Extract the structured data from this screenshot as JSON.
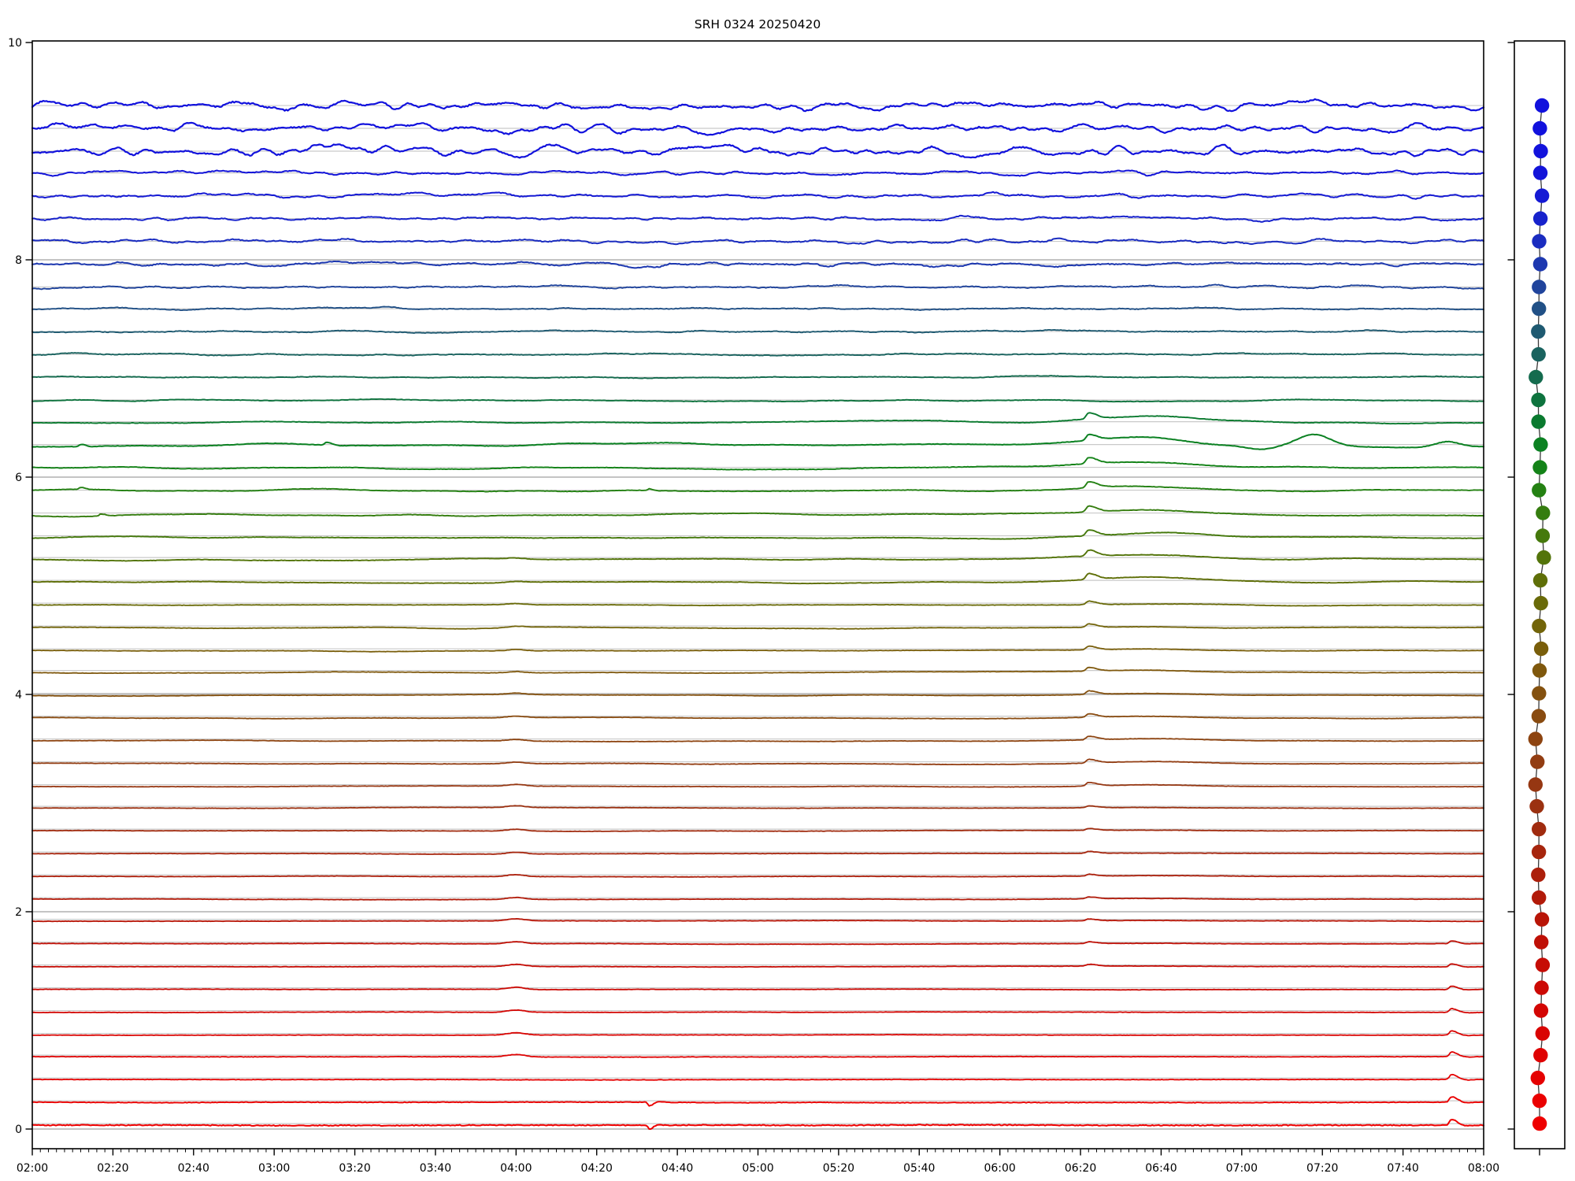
{
  "title": "SRH 0324 20250420",
  "station": "SRH 0324",
  "date": "20250420",
  "x_axis": {
    "tick_labels": [
      "02:00",
      "02:20",
      "02:40",
      "03:00",
      "03:20",
      "03:40",
      "04:00",
      "04:20",
      "04:40",
      "05:00",
      "05:20",
      "05:40",
      "06:00",
      "06:20",
      "06:40",
      "07:00",
      "07:20",
      "07:40",
      "08:00"
    ],
    "start_minutes": 120,
    "end_minutes": 480,
    "major_step_minutes": 20,
    "minor_step_minutes": 2
  },
  "y_axis": {
    "tick_labels": [
      "0",
      "2",
      "4",
      "6",
      "8",
      "10"
    ],
    "tick_values": [
      0,
      2,
      4,
      6,
      8,
      10
    ],
    "ylim": [
      -0.18,
      10.02
    ]
  },
  "colors": {
    "background": "#ffffff",
    "spine": "#000000",
    "trace_baseline": "#c9c9c9",
    "grid_major": "#b0b0b0",
    "marker_connector": "#3a3a3a"
  },
  "side_panel": {
    "marker_radius": 9.2,
    "connector_color": "#3a3a3a",
    "tick_values": [
      0,
      2,
      4,
      6,
      8,
      10
    ]
  },
  "chart_data": {
    "type": "line",
    "title": "SRH 0324 20250420",
    "xlabel": "",
    "ylabel": "",
    "x_range_minutes": [
      120,
      480
    ],
    "ylim": [
      -0.18,
      10.02
    ],
    "grid": "per-trace gray baselines plus darker gridlines at y=0,2,4,6,8",
    "legend_position": "none",
    "description": "Stacked drum-style waveform record section: 46 horizontal traces spaced 0.2082 units apart from y=9.42 (top) to y=0.05 (bottom), colored along a blue-teal-green-olive-brown-red gradient. Top blue traces are noisy/high amplitude, middle green-olive traces are smooth with slow undulations, bottom red traces are nearly flat. A narrow side strip on the right shows one colored dot per trace (same colors) connected by a thin dark line.",
    "n_traces": 46,
    "first_trace_baseline": 9.42,
    "trace_spacing": 0.2082,
    "traces": [
      {
        "y": 9.42,
        "color": "#1111dd",
        "amp": 0.055,
        "kc": 55,
        "fuzz": 0.006,
        "w": 2.2,
        "off": 0
      },
      {
        "y": 9.21,
        "color": "#1111dd",
        "amp": 0.058,
        "kc": 55,
        "fuzz": 0.006,
        "w": 2.2,
        "off": 0
      },
      {
        "y": 9.0,
        "color": "#1212dc",
        "amp": 0.062,
        "kc": 50,
        "fuzz": 0.006,
        "w": 2.2,
        "off": 0
      },
      {
        "y": 8.8,
        "color": "#1314d9",
        "amp": 0.028,
        "kc": 45,
        "fuzz": 0.004,
        "w": 2.0,
        "off": 0
      },
      {
        "y": 8.59,
        "color": "#151ad4",
        "amp": 0.032,
        "kc": 42,
        "fuzz": 0.004,
        "w": 2.0,
        "off": 0
      },
      {
        "y": 8.38,
        "color": "#1722cc",
        "amp": 0.028,
        "kc": 40,
        "fuzz": 0.004,
        "w": 2.0,
        "off": 0
      },
      {
        "y": 8.17,
        "color": "#1a2cc0",
        "amp": 0.026,
        "kc": 38,
        "fuzz": 0.004,
        "w": 2.0,
        "off": 0
      },
      {
        "y": 7.96,
        "color": "#1d38b0",
        "amp": 0.032,
        "kc": 36,
        "fuzz": 0.004,
        "w": 2.0,
        "off": 0
      },
      {
        "y": 7.75,
        "color": "#20449c",
        "amp": 0.02,
        "kc": 30,
        "fuzz": 0.0035,
        "w": 1.9,
        "off": 0
      },
      {
        "y": 7.55,
        "color": "#215086",
        "amp": 0.017,
        "kc": 26,
        "fuzz": 0.003,
        "w": 1.9,
        "off": 0
      },
      {
        "y": 7.34,
        "color": "#1f5a71",
        "amp": 0.015,
        "kc": 22,
        "fuzz": 0.003,
        "w": 1.9,
        "off": 0
      },
      {
        "y": 7.13,
        "color": "#1a635f",
        "amp": 0.013,
        "kc": 18,
        "fuzz": 0.003,
        "w": 1.9,
        "off": 0
      },
      {
        "y": 6.92,
        "color": "#146b4e",
        "amp": 0.012,
        "kc": 14,
        "fuzz": 0.0025,
        "w": 1.9,
        "off": 0
      },
      {
        "y": 6.71,
        "color": "#0e733e",
        "amp": 0.013,
        "kc": 10,
        "fuzz": 0.002,
        "w": 1.9,
        "off": -0.005
      },
      {
        "y": 6.51,
        "color": "#0a7a2f",
        "amp": 0.016,
        "kc": 8,
        "fuzz": 0.002,
        "w": 1.9,
        "off": -0.005
      },
      {
        "y": 6.3,
        "color": "#0b8122",
        "amp": 0.024,
        "kc": 7,
        "fuzz": 0.002,
        "w": 2.0,
        "off": -0.005
      },
      {
        "y": 6.09,
        "color": "#148318",
        "amp": 0.016,
        "kc": 8,
        "fuzz": 0.002,
        "w": 1.9,
        "off": -0.005
      },
      {
        "y": 5.88,
        "color": "#248113",
        "amp": 0.018,
        "kc": 8,
        "fuzz": 0.002,
        "w": 1.9,
        "off": -0.005
      },
      {
        "y": 5.67,
        "color": "#357d0f",
        "amp": 0.016,
        "kc": 8,
        "fuzz": 0.002,
        "w": 1.9,
        "off": -0.018
      },
      {
        "y": 5.46,
        "color": "#45790c",
        "amp": 0.014,
        "kc": 8,
        "fuzz": 0.002,
        "w": 1.9,
        "off": -0.018
      },
      {
        "y": 5.26,
        "color": "#53740a",
        "amp": 0.012,
        "kc": 7,
        "fuzz": 0.002,
        "w": 1.9,
        "off": -0.018
      },
      {
        "y": 5.05,
        "color": "#5f6f08",
        "amp": 0.011,
        "kc": 7,
        "fuzz": 0.0018,
        "w": 1.9,
        "off": -0.018
      },
      {
        "y": 4.84,
        "color": "#696a08",
        "amp": 0.009,
        "kc": 6,
        "fuzz": 0.0016,
        "w": 1.8,
        "off": -0.018
      },
      {
        "y": 4.63,
        "color": "#726409",
        "amp": 0.0085,
        "kc": 6,
        "fuzz": 0.0016,
        "w": 1.8,
        "off": -0.018
      },
      {
        "y": 4.42,
        "color": "#795e0b",
        "amp": 0.008,
        "kc": 6,
        "fuzz": 0.0016,
        "w": 1.8,
        "off": -0.018
      },
      {
        "y": 4.22,
        "color": "#7f580d",
        "amp": 0.0075,
        "kc": 5,
        "fuzz": 0.0016,
        "w": 1.8,
        "off": -0.018
      },
      {
        "y": 4.01,
        "color": "#84510f",
        "amp": 0.0075,
        "kc": 5,
        "fuzz": 0.0016,
        "w": 1.8,
        "off": -0.018
      },
      {
        "y": 3.8,
        "color": "#894b10",
        "amp": 0.007,
        "kc": 5,
        "fuzz": 0.0016,
        "w": 1.8,
        "off": -0.018
      },
      {
        "y": 3.59,
        "color": "#8d4411",
        "amp": 0.0065,
        "kc": 5,
        "fuzz": 0.0016,
        "w": 1.8,
        "off": -0.018
      },
      {
        "y": 3.38,
        "color": "#923d12",
        "amp": 0.0065,
        "kc": 5,
        "fuzz": 0.0016,
        "w": 1.8,
        "off": -0.018
      },
      {
        "y": 3.17,
        "color": "#963712",
        "amp": 0.006,
        "kc": 5,
        "fuzz": 0.0016,
        "w": 1.8,
        "off": -0.018
      },
      {
        "y": 2.97,
        "color": "#9b3111",
        "amp": 0.0055,
        "kc": 4,
        "fuzz": 0.0016,
        "w": 1.8,
        "off": -0.015
      },
      {
        "y": 2.76,
        "color": "#a02b0f",
        "amp": 0.005,
        "kc": 4,
        "fuzz": 0.0016,
        "w": 1.8,
        "off": -0.015
      },
      {
        "y": 2.55,
        "color": "#a6250d",
        "amp": 0.005,
        "kc": 4,
        "fuzz": 0.0016,
        "w": 1.8,
        "off": -0.015
      },
      {
        "y": 2.34,
        "color": "#ac1f0b",
        "amp": 0.0045,
        "kc": 4,
        "fuzz": 0.0016,
        "w": 1.8,
        "off": -0.015
      },
      {
        "y": 2.13,
        "color": "#b21a09",
        "amp": 0.004,
        "kc": 4,
        "fuzz": 0.0016,
        "w": 1.8,
        "off": -0.015
      },
      {
        "y": 1.93,
        "color": "#b81507",
        "amp": 0.004,
        "kc": 4,
        "fuzz": 0.0016,
        "w": 1.8,
        "off": -0.015
      },
      {
        "y": 1.72,
        "color": "#bf1006",
        "amp": 0.004,
        "kc": 4,
        "fuzz": 0.0016,
        "w": 1.8,
        "off": -0.015
      },
      {
        "y": 1.51,
        "color": "#c60c05",
        "amp": 0.0035,
        "kc": 4,
        "fuzz": 0.0016,
        "w": 1.8,
        "off": -0.015
      },
      {
        "y": 1.3,
        "color": "#cc0904",
        "amp": 0.0035,
        "kc": 4,
        "fuzz": 0.0016,
        "w": 1.8,
        "off": -0.015
      },
      {
        "y": 1.09,
        "color": "#d30603",
        "amp": 0.003,
        "kc": 4,
        "fuzz": 0.0016,
        "w": 1.8,
        "off": -0.015
      },
      {
        "y": 0.88,
        "color": "#d90402",
        "amp": 0.003,
        "kc": 4,
        "fuzz": 0.0016,
        "w": 1.8,
        "off": -0.015
      },
      {
        "y": 0.68,
        "color": "#df0202",
        "amp": 0.003,
        "kc": 4,
        "fuzz": 0.002,
        "w": 1.8,
        "off": -0.015
      },
      {
        "y": 0.47,
        "color": "#e50101",
        "amp": 0.003,
        "kc": 4,
        "fuzz": 0.002,
        "w": 1.8,
        "off": -0.015
      },
      {
        "y": 0.26,
        "color": "#ea0101",
        "amp": 0.003,
        "kc": 5,
        "fuzz": 0.0025,
        "w": 1.9,
        "off": -0.015
      },
      {
        "y": 0.05,
        "color": "#ee0000",
        "amp": 0.003,
        "kc": 6,
        "fuzz": 0.004,
        "w": 2.0,
        "off": -0.015
      }
    ],
    "events": [
      {
        "time": "02:12",
        "t_min": 132,
        "from": 15,
        "to": 15,
        "kind": "spike",
        "amp": 0.02,
        "sigma_min": 0.6
      },
      {
        "time": "02:12",
        "t_min": 132,
        "from": 17,
        "to": 17,
        "kind": "spike",
        "amp": 0.018,
        "sigma_min": 0.6
      },
      {
        "time": "02:17",
        "t_min": 137,
        "from": 18,
        "to": 18,
        "kind": "spike",
        "amp": 0.018,
        "sigma_min": 0.6
      },
      {
        "time": "03:13",
        "t_min": 193,
        "from": 15,
        "to": 15,
        "kind": "spike",
        "amp": 0.028,
        "sigma_min": 0.7
      },
      {
        "time": "04:00",
        "t_min": 240,
        "from": 20,
        "to": 42,
        "kind": "bump",
        "amp": 0.022,
        "sigma_min": 2.2,
        "grow": true
      },
      {
        "time": "04:33",
        "t_min": 273,
        "from": 17,
        "to": 17,
        "kind": "spike",
        "amp": 0.016,
        "sigma_min": 0.5
      },
      {
        "time": "04:33",
        "t_min": 273,
        "from": 44,
        "to": 45,
        "kind": "spike",
        "amp": -0.035,
        "sigma_min": 0.5
      },
      {
        "time": "06:22",
        "t_min": 382,
        "from": 14,
        "to": 38,
        "kind": "spike_hump",
        "amp": 0.055,
        "sigma_min": 1.0,
        "hump_amp": 0.05,
        "hump_dt_min": 14,
        "hump_sigma_min": 13
      },
      {
        "time": "07:05",
        "t_min": 425,
        "from": 15,
        "to": 15,
        "kind": "bump",
        "amp": -0.035,
        "sigma_min": 3.5
      },
      {
        "time": "07:18",
        "t_min": 438,
        "from": 15,
        "to": 15,
        "kind": "bump",
        "amp": 0.105,
        "sigma_min": 4.0
      },
      {
        "time": "07:51",
        "t_min": 471,
        "from": 15,
        "to": 15,
        "kind": "bump",
        "amp": 0.05,
        "sigma_min": 3.0
      },
      {
        "time": "07:52",
        "t_min": 472,
        "from": 37,
        "to": 45,
        "kind": "spike",
        "amp": 0.055,
        "sigma_min": 0.8,
        "grow": true
      }
    ]
  }
}
